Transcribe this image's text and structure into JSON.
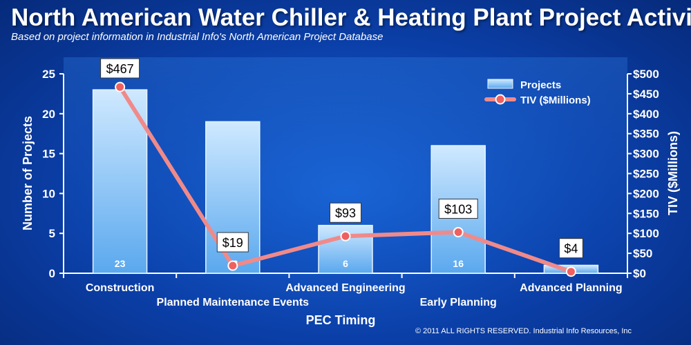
{
  "title": "North American Water Chiller & Heating Plant Project Activity",
  "subtitle": "Based on project information in Industrial Info's North American Project Database",
  "copyright": "© 2011 ALL RIGHTS RESERVED. Industrial Info Resources, Inc",
  "chart_data": {
    "type": "bar+line",
    "xlabel": "PEC Timing",
    "ylabel_left": "Number of Projects",
    "ylabel_right": "TIV ($Millions)",
    "categories": [
      "Construction",
      "Planned Maintenance Events",
      "Advanced Engineering",
      "Early Planning",
      "Advanced Planning"
    ],
    "left_axis": {
      "min": 0,
      "max": 25,
      "step": 5,
      "ticks": [
        "0",
        "5",
        "10",
        "15",
        "20",
        "25"
      ]
    },
    "right_axis": {
      "min": 0,
      "max": 500,
      "step": 50,
      "ticks": [
        "$0",
        "$50",
        "$100",
        "$150",
        "$200",
        "$250",
        "$300",
        "$350",
        "$400",
        "$450",
        "$500"
      ]
    },
    "series": [
      {
        "name": "Projects",
        "type": "bar",
        "axis": "left",
        "values": [
          23,
          19,
          6,
          16,
          1
        ],
        "labels": [
          "23",
          "19",
          "6",
          "16",
          "1"
        ]
      },
      {
        "name": "TIV ($Millions)",
        "type": "line",
        "axis": "right",
        "values": [
          467,
          19,
          93,
          103,
          4
        ],
        "labels": [
          "$467",
          "$19",
          "$93",
          "$103",
          "$4"
        ]
      }
    ],
    "legend_position": "top-right",
    "colors": {
      "bar_top": "#cfe9ff",
      "bar_bottom": "#5aa8ee",
      "line": "#f08a8a",
      "marker_fill": "#f06060"
    }
  }
}
